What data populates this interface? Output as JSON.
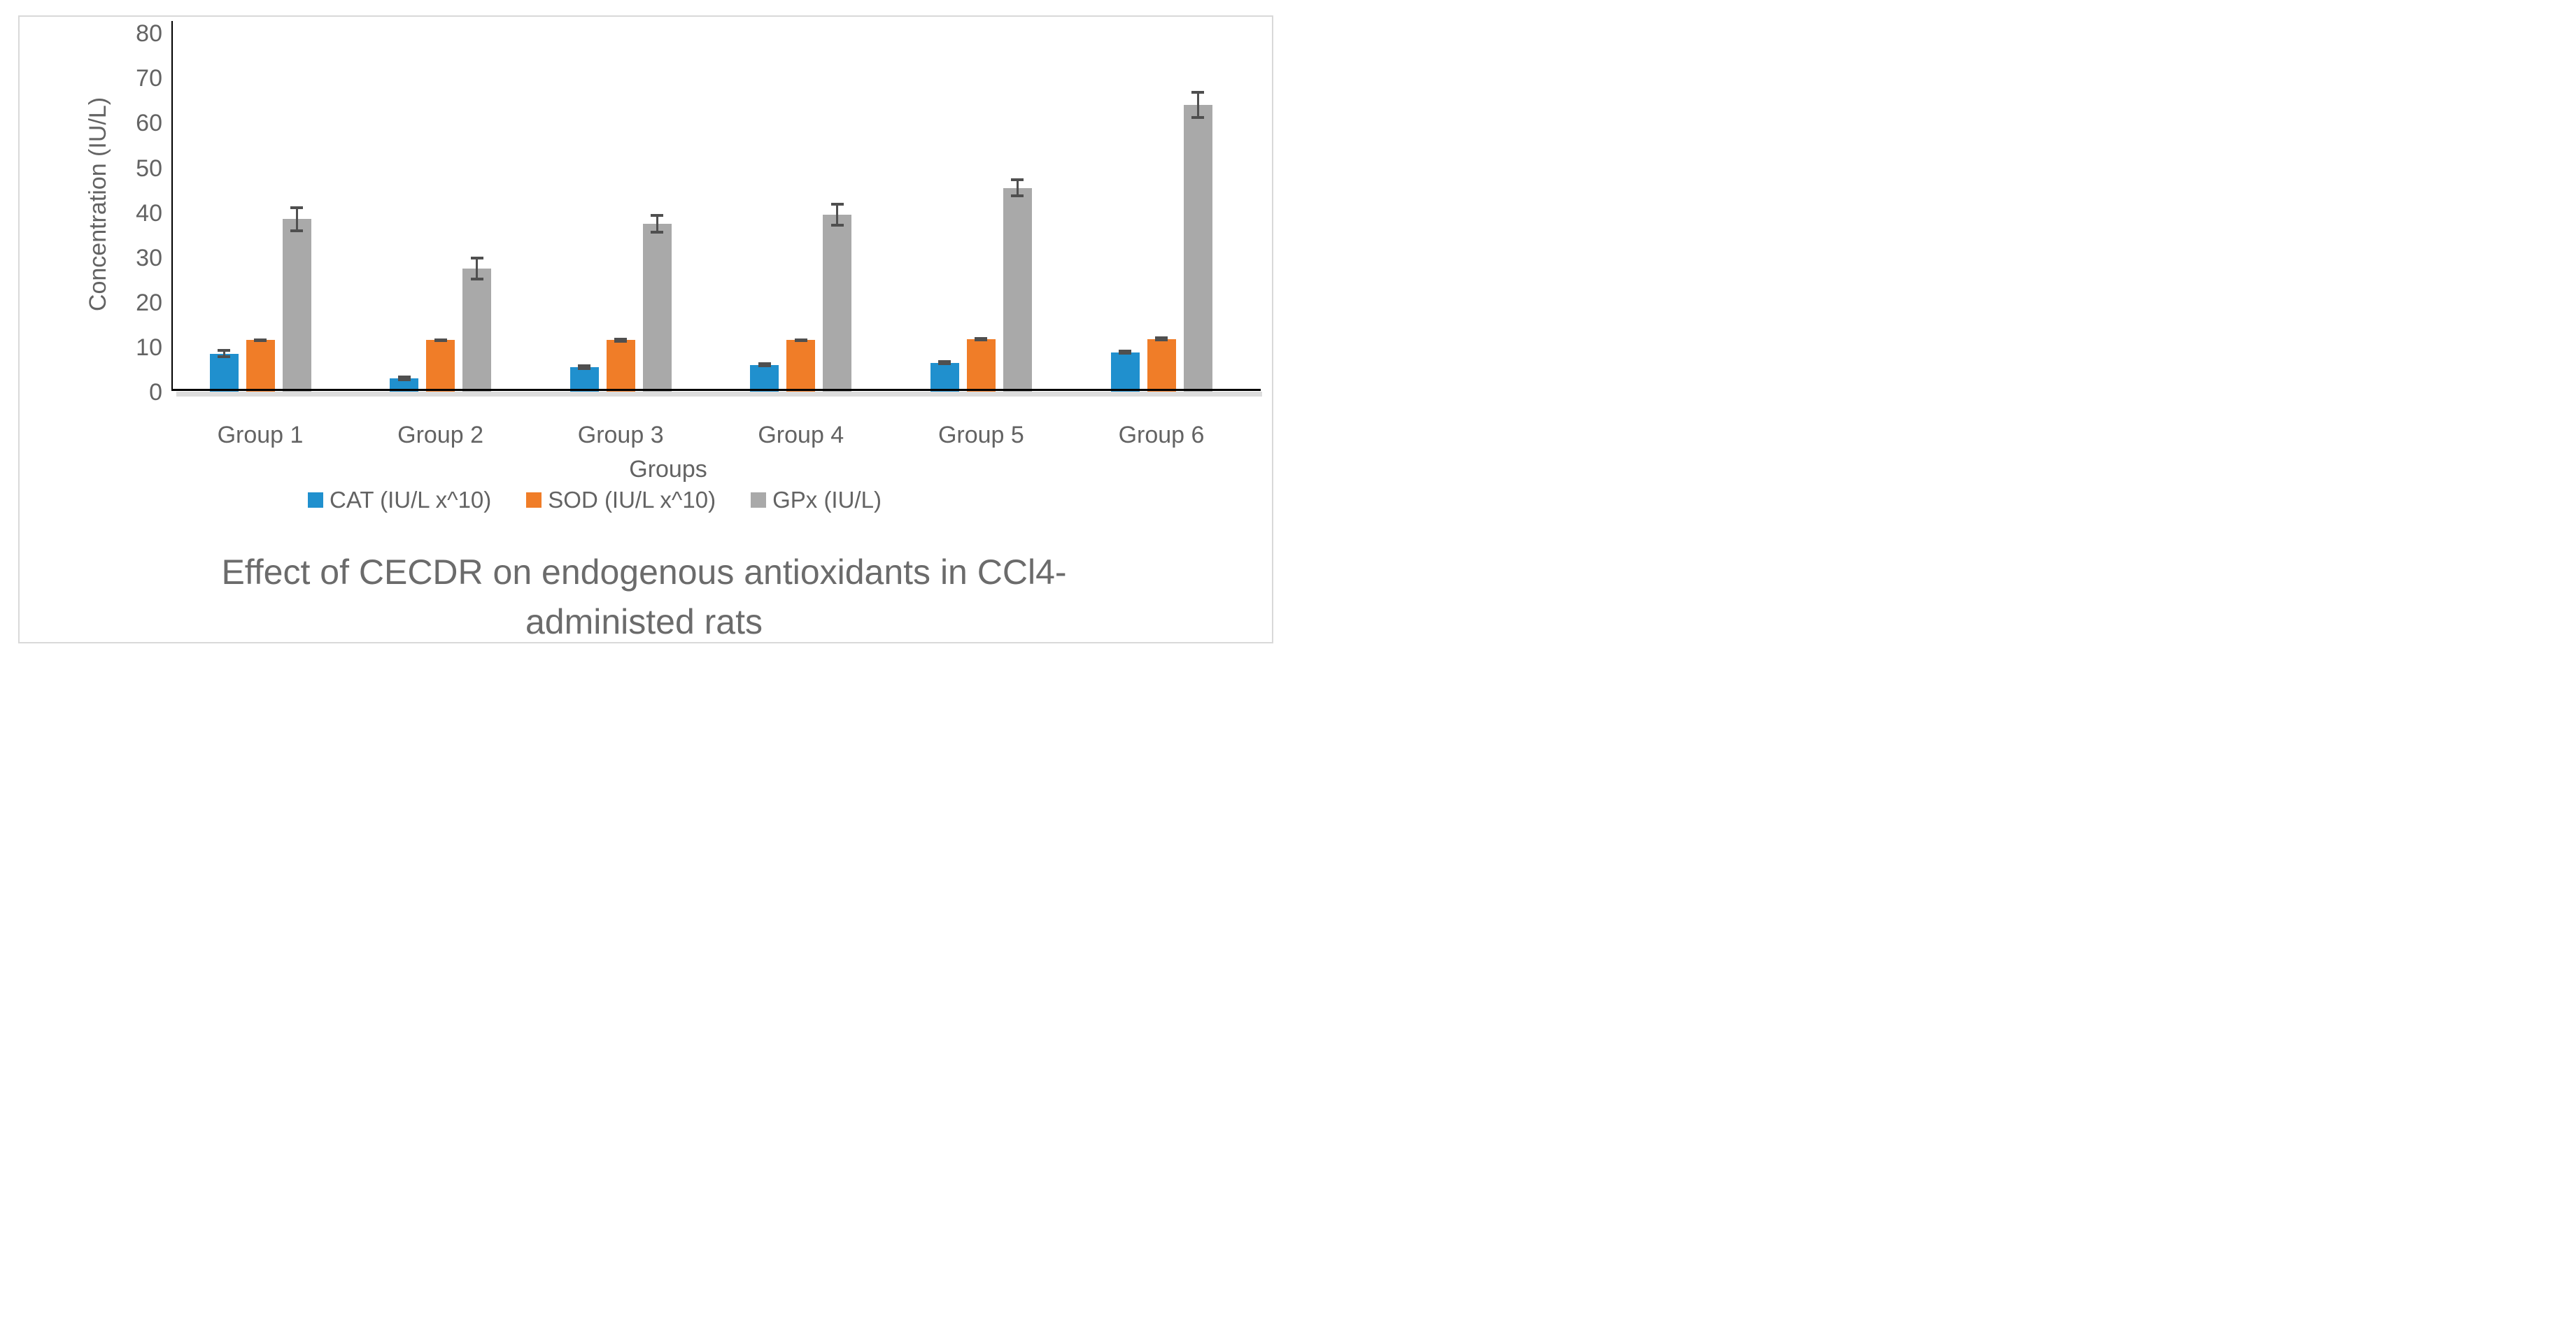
{
  "figure": {
    "border_color": "#D9D9D9",
    "background": "#FFFFFF"
  },
  "chart_data": {
    "type": "bar",
    "title": "Effect of CECDR on endogenous antioxidants in CCl4-administed rats",
    "title_lines": [
      "Effect of CECDR on endogenous antioxidants in CCl4-",
      "administed rats"
    ],
    "xlabel": "Groups",
    "ylabel": "Concentration (IU/L)",
    "ylim": [
      0,
      80
    ],
    "ytick_step": 10,
    "yticks": [
      0,
      10,
      20,
      30,
      40,
      50,
      60,
      70,
      80
    ],
    "grid": false,
    "legend_position": "bottom",
    "error_bars": true,
    "error_bar_color": "#4F4F4F",
    "axis_color": "#000000",
    "text_color": "#636363",
    "categories": [
      "Group 1",
      "Group 2",
      "Group 3",
      "Group 4",
      "Group 5",
      "Group 6"
    ],
    "series": [
      {
        "name": "CAT (IU/L x^10)",
        "color": "#2090CE",
        "values": [
          8,
          2.5,
          5,
          5.5,
          6,
          8.3
        ],
        "errors": [
          0.9,
          0.4,
          0.5,
          0.4,
          0.4,
          0.4
        ]
      },
      {
        "name": "SOD (IU/L x^10)",
        "color": "#F07D28",
        "values": [
          11,
          11,
          11,
          11,
          11.2,
          11.3
        ],
        "errors": [
          0.3,
          0.3,
          0.4,
          0.3,
          0.3,
          0.4
        ]
      },
      {
        "name": "GPx (IU/L)",
        "color": "#A9A9A9",
        "values": [
          38,
          27,
          37,
          39,
          45,
          63.5
        ],
        "errors": [
          2.7,
          2.5,
          2.0,
          2.5,
          2.0,
          3.0
        ]
      }
    ]
  }
}
